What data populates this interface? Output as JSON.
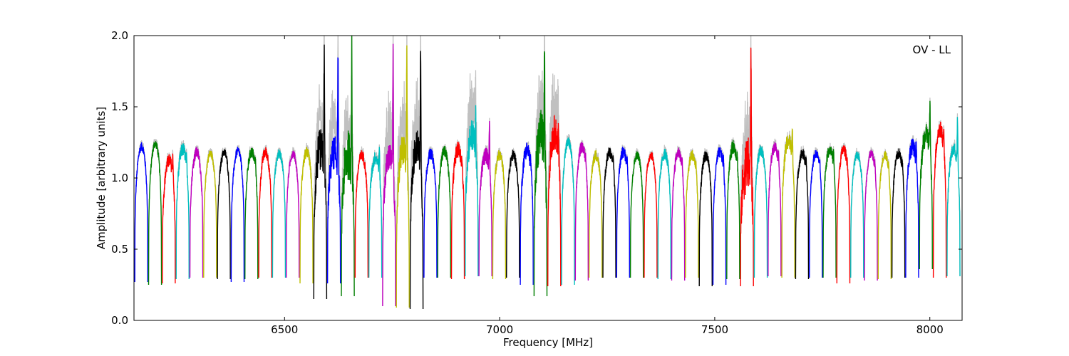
{
  "chart_data": {
    "type": "line",
    "xlabel": "Frequency [MHz]",
    "ylabel": "Amplitude [arbitrary units]",
    "annotation": "OV - LL",
    "xlim": [
      6150,
      8075
    ],
    "ylim": [
      0.0,
      2.0
    ],
    "xticks": [
      6500,
      7000,
      7500,
      8000
    ],
    "yticks": [
      0.0,
      0.5,
      1.0,
      1.5,
      2.0
    ],
    "ytick_labels": [
      "0.0",
      "0.5",
      "1.0",
      "1.5",
      "2.0"
    ],
    "grid": false,
    "channel_width_mhz": 32,
    "color_cycle": [
      "#0000ff",
      "#008000",
      "#ff0000",
      "#00bfbf",
      "#bf00bf",
      "#bfbf00",
      "#000000"
    ],
    "unflagged_color": "#c0c0c0",
    "channels": [
      {
        "start": 6152,
        "level": 1.22,
        "min": 0.27,
        "noise": 0.03
      },
      {
        "start": 6184,
        "level": 1.24,
        "min": 0.25,
        "noise": 0.03
      },
      {
        "start": 6216,
        "level": 1.12,
        "min": 0.26,
        "noise": 0.05,
        "spike": 1.28
      },
      {
        "start": 6248,
        "level": 1.2,
        "min": 0.29,
        "noise": 0.05,
        "spike": 1.26
      },
      {
        "start": 6280,
        "level": 1.18,
        "min": 0.3,
        "noise": 0.04
      },
      {
        "start": 6312,
        "level": 1.17,
        "min": 0.3,
        "noise": 0.03
      },
      {
        "start": 6344,
        "level": 1.18,
        "min": 0.29,
        "noise": 0.03
      },
      {
        "start": 6376,
        "level": 1.19,
        "min": 0.27,
        "noise": 0.03
      },
      {
        "start": 6408,
        "level": 1.18,
        "min": 0.29,
        "noise": 0.04,
        "spike": 1.25
      },
      {
        "start": 6440,
        "level": 1.18,
        "min": 0.3,
        "noise": 0.04
      },
      {
        "start": 6472,
        "level": 1.17,
        "min": 0.3,
        "noise": 0.03
      },
      {
        "start": 6504,
        "level": 1.17,
        "min": 0.3,
        "noise": 0.03
      },
      {
        "start": 6536,
        "level": 1.18,
        "min": 0.26,
        "noise": 0.04
      },
      {
        "start": 6568,
        "level": 1.2,
        "min": 0.15,
        "noise": 0.15,
        "spike": 2.0
      },
      {
        "start": 6600,
        "level": 1.18,
        "min": 0.26,
        "noise": 0.12,
        "spike": 2.0
      },
      {
        "start": 6632,
        "level": 1.16,
        "min": 0.17,
        "noise": 0.18,
        "spike": 2.0
      },
      {
        "start": 6664,
        "level": 1.16,
        "min": 0.3,
        "noise": 0.04
      },
      {
        "start": 6696,
        "level": 1.14,
        "min": 0.3,
        "noise": 0.05,
        "spike": 1.32
      },
      {
        "start": 6728,
        "level": 1.15,
        "min": 0.1,
        "noise": 0.1,
        "spike": 2.0
      },
      {
        "start": 6760,
        "level": 1.2,
        "min": 0.09,
        "noise": 0.12,
        "spike": 2.0
      },
      {
        "start": 6792,
        "level": 1.22,
        "min": 0.08,
        "noise": 0.12,
        "spike": 2.0
      },
      {
        "start": 6824,
        "level": 1.17,
        "min": 0.3,
        "noise": 0.04
      },
      {
        "start": 6856,
        "level": 1.19,
        "min": 0.3,
        "noise": 0.04
      },
      {
        "start": 6888,
        "level": 1.2,
        "min": 0.29,
        "noise": 0.06,
        "spike": 1.24
      },
      {
        "start": 6920,
        "level": 1.3,
        "min": 0.31,
        "noise": 0.12,
        "spike": 1.55
      },
      {
        "start": 6952,
        "level": 1.16,
        "min": 0.31,
        "noise": 0.06,
        "spike": 1.5
      },
      {
        "start": 6984,
        "level": 1.16,
        "min": 0.29,
        "noise": 0.04
      },
      {
        "start": 7016,
        "level": 1.16,
        "min": 0.3,
        "noise": 0.04
      },
      {
        "start": 7048,
        "level": 1.2,
        "min": 0.25,
        "noise": 0.06,
        "spike": 1.24
      },
      {
        "start": 7080,
        "level": 1.3,
        "min": 0.17,
        "noise": 0.18,
        "spike": 2.0
      },
      {
        "start": 7112,
        "level": 1.32,
        "min": 0.24,
        "noise": 0.12,
        "spike": 1.48
      },
      {
        "start": 7144,
        "level": 1.25,
        "min": 0.25,
        "noise": 0.04
      },
      {
        "start": 7176,
        "level": 1.22,
        "min": 0.28,
        "noise": 0.04,
        "spike": 1.28
      },
      {
        "start": 7208,
        "level": 1.16,
        "min": 0.3,
        "noise": 0.04
      },
      {
        "start": 7240,
        "level": 1.18,
        "min": 0.3,
        "noise": 0.04,
        "spike": 1.26
      },
      {
        "start": 7272,
        "level": 1.18,
        "min": 0.3,
        "noise": 0.04,
        "spike": 1.28
      },
      {
        "start": 7304,
        "level": 1.16,
        "min": 0.3,
        "noise": 0.03
      },
      {
        "start": 7336,
        "level": 1.16,
        "min": 0.3,
        "noise": 0.03
      },
      {
        "start": 7368,
        "level": 1.17,
        "min": 0.29,
        "noise": 0.04
      },
      {
        "start": 7400,
        "level": 1.18,
        "min": 0.28,
        "noise": 0.04,
        "spike": 1.24
      },
      {
        "start": 7432,
        "level": 1.16,
        "min": 0.3,
        "noise": 0.04,
        "spike": 1.22
      },
      {
        "start": 7464,
        "level": 1.16,
        "min": 0.24,
        "noise": 0.04
      },
      {
        "start": 7496,
        "level": 1.18,
        "min": 0.25,
        "noise": 0.04,
        "spike": 1.26
      },
      {
        "start": 7528,
        "level": 1.22,
        "min": 0.29,
        "noise": 0.05,
        "spike": 1.28
      },
      {
        "start": 7560,
        "level": 1.1,
        "min": 0.24,
        "noise": 0.2,
        "spike": 2.0
      },
      {
        "start": 7592,
        "level": 1.19,
        "min": 0.3,
        "noise": 0.04
      },
      {
        "start": 7624,
        "level": 1.22,
        "min": 0.31,
        "noise": 0.04,
        "spike": 1.28
      },
      {
        "start": 7656,
        "level": 1.26,
        "min": 0.3,
        "noise": 0.06,
        "spike": 1.48
      },
      {
        "start": 7688,
        "level": 1.17,
        "min": 0.29,
        "noise": 0.04,
        "spike": 1.27
      },
      {
        "start": 7720,
        "level": 1.17,
        "min": 0.3,
        "noise": 0.03,
        "spike": 1.24
      },
      {
        "start": 7752,
        "level": 1.2,
        "min": 0.3,
        "noise": 0.04,
        "spike": 1.3
      },
      {
        "start": 7784,
        "level": 1.2,
        "min": 0.26,
        "noise": 0.04,
        "spike": 1.24
      },
      {
        "start": 7816,
        "level": 1.16,
        "min": 0.3,
        "noise": 0.03
      },
      {
        "start": 7848,
        "level": 1.17,
        "min": 0.28,
        "noise": 0.03,
        "spike": 1.22
      },
      {
        "start": 7880,
        "level": 1.16,
        "min": 0.29,
        "noise": 0.03,
        "spike": 1.2
      },
      {
        "start": 7912,
        "level": 1.17,
        "min": 0.3,
        "noise": 0.04,
        "spike": 1.22
      },
      {
        "start": 7944,
        "level": 1.22,
        "min": 0.3,
        "noise": 0.06,
        "spike": 1.4
      },
      {
        "start": 7976,
        "level": 1.3,
        "min": 0.36,
        "noise": 0.08,
        "spike": 1.65
      },
      {
        "start": 8008,
        "level": 1.34,
        "min": 0.3,
        "noise": 0.06,
        "spike": 1.48
      },
      {
        "start": 8040,
        "level": 1.2,
        "min": 0.31,
        "noise": 0.05,
        "spike": 1.52
      }
    ]
  }
}
